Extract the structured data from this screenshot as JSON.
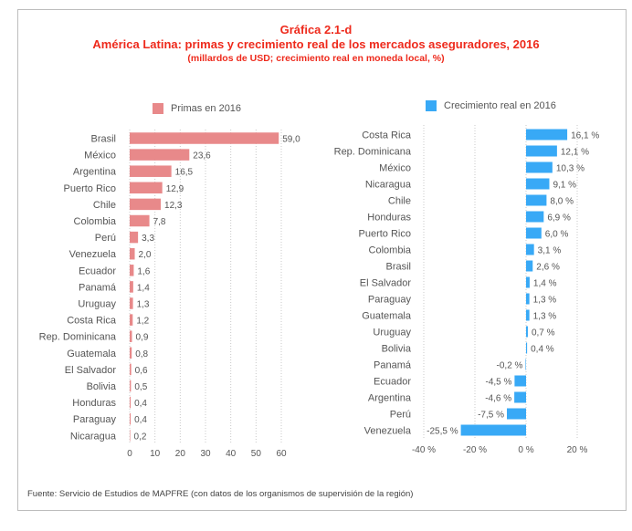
{
  "header": {
    "figure_number": "Gráfica 2.1-d",
    "title": "América Latina: primas y crecimiento real de los mercados aseguradores, 2016",
    "subtitle": "(millardos de USD; crecimiento real en moneda local, %)"
  },
  "colors": {
    "title": "#ee2a1c",
    "primas_bar": "#e8898a",
    "crecimiento_bar": "#38a9f6",
    "text": "#555555",
    "grid": "#c8c8c8"
  },
  "footer": {
    "source": "Fuente: Servicio de Estudios de MAPFRE (con datos de los organismos de supervisión de la región)"
  },
  "chart_data": [
    {
      "type": "bar",
      "orientation": "horizontal",
      "legend": "Primas en 2016",
      "legend_position": "top",
      "categories": [
        "Brasil",
        "México",
        "Argentina",
        "Puerto Rico",
        "Chile",
        "Colombia",
        "Perú",
        "Venezuela",
        "Ecuador",
        "Panamá",
        "Uruguay",
        "Costa Rica",
        "Rep. Dominicana",
        "Guatemala",
        "El Salvador",
        "Bolivia",
        "Honduras",
        "Paraguay",
        "Nicaragua"
      ],
      "values": [
        59.0,
        23.6,
        16.5,
        12.9,
        12.3,
        7.8,
        3.3,
        2.0,
        1.6,
        1.4,
        1.3,
        1.2,
        0.9,
        0.8,
        0.6,
        0.5,
        0.4,
        0.4,
        0.2
      ],
      "value_labels": [
        "59,0",
        "23,6",
        "16,5",
        "12,9",
        "12,3",
        "7,8",
        "3,3",
        "2,0",
        "1,6",
        "1,4",
        "1,3",
        "1,2",
        "0,9",
        "0,8",
        "0,6",
        "0,5",
        "0,4",
        "0,4",
        "0,2"
      ],
      "xlim": [
        0,
        60
      ],
      "xticks": [
        0,
        10,
        20,
        30,
        40,
        50,
        60
      ],
      "xtick_labels": [
        "0",
        "10",
        "20",
        "30",
        "40",
        "50",
        "60"
      ],
      "grid": "vertical-dotted",
      "xlabel": "",
      "ylabel": ""
    },
    {
      "type": "bar",
      "orientation": "horizontal",
      "legend": "Crecimiento real en 2016",
      "legend_position": "top",
      "categories": [
        "Costa Rica",
        "Rep. Dominicana",
        "México",
        "Nicaragua",
        "Chile",
        "Honduras",
        "Puerto Rico",
        "Colombia",
        "Brasil",
        "El Salvador",
        "Paraguay",
        "Guatemala",
        "Uruguay",
        "Bolivia",
        "Panamá",
        "Ecuador",
        "Argentina",
        "Perú",
        "Venezuela"
      ],
      "values": [
        16.1,
        12.1,
        10.3,
        9.1,
        8.0,
        6.9,
        6.0,
        3.1,
        2.6,
        1.4,
        1.3,
        1.3,
        0.7,
        0.4,
        -0.2,
        -4.5,
        -4.6,
        -7.5,
        -25.5
      ],
      "value_labels": [
        "16,1 %",
        "12,1 %",
        "10,3 %",
        "9,1 %",
        "8,0 %",
        "6,9 %",
        "6,0 %",
        "3,1 %",
        "2,6 %",
        "1,4 %",
        "1,3 %",
        "1,3 %",
        "0,7 %",
        "0,4 %",
        "-0,2 %",
        "-4,5 %",
        "-4,6 %",
        "-7,5 %",
        "-25,5 %"
      ],
      "xlim": [
        -40,
        20
      ],
      "xticks": [
        -40,
        -20,
        0,
        20
      ],
      "xtick_labels": [
        "-40 %",
        "-20 %",
        "0 %",
        "20 %"
      ],
      "grid": "vertical-dotted",
      "xlabel": "",
      "ylabel": ""
    }
  ]
}
